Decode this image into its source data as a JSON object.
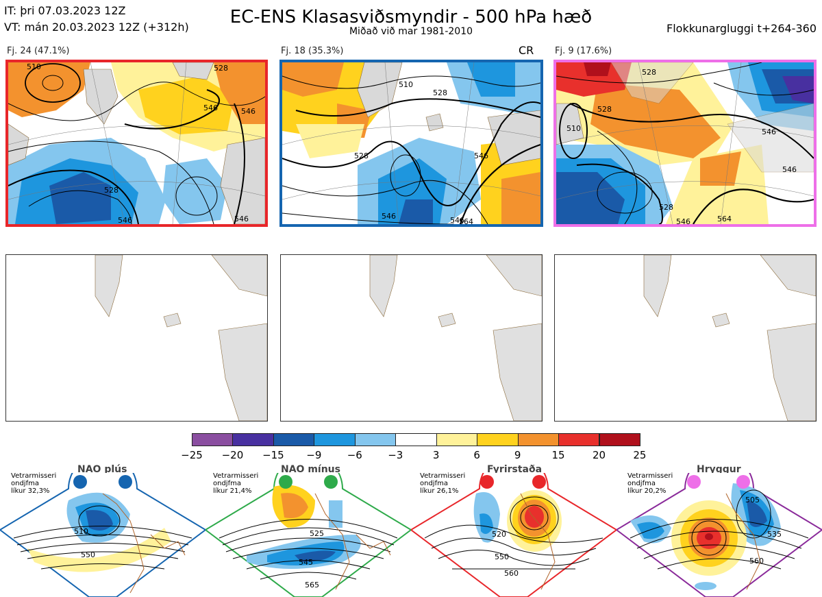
{
  "header": {
    "init_time": "IT: þri 07.03.2023 12Z",
    "valid_time": "VT: mán 20.03.2023 12Z  (+312h)",
    "title": "EC-ENS Klasasviðsmyndir - 500 hPa hæð",
    "subtitle": "Miðað við mar 1981-2010",
    "window": "Flokkunargluggi t+264-360"
  },
  "panels": [
    {
      "label": "Fj. 24 (47.1%)",
      "border_color": "#e8262a",
      "tag": "",
      "contours": [
        "510",
        "528",
        "546",
        "528",
        "546",
        "546",
        "546"
      ]
    },
    {
      "label": "Fj. 18 (35.3%)",
      "border_color": "#1565b0",
      "tag": "CR",
      "contours": [
        "510",
        "528",
        "528",
        "546",
        "546",
        "546",
        "564"
      ]
    },
    {
      "label": "Fj. 9 (17.6%)",
      "border_color": "#ee6fe8",
      "tag": "",
      "contours": [
        "510",
        "528",
        "528",
        "546",
        "528",
        "546",
        "546",
        "564"
      ]
    }
  ],
  "colorbar": {
    "colors": [
      "#8a4ea0",
      "#4830a0",
      "#1a5aa8",
      "#1e96de",
      "#84c6ee",
      "#ffffff",
      "#fff29a",
      "#ffd21e",
      "#f3922e",
      "#e8302c",
      "#b0101c"
    ],
    "ticks": [
      "−25",
      "−20",
      "−15",
      "−9",
      "−6",
      "−3",
      "3",
      "6",
      "9",
      "15",
      "20",
      "25"
    ]
  },
  "regimes": [
    {
      "name": "NAO plús",
      "note": [
        "Vetrarmisseri",
        "ondjfma",
        "líkur 32,3%"
      ],
      "color": "#1565b0",
      "contours": [
        "510",
        "550"
      ]
    },
    {
      "name": "NAO mínus",
      "note": [
        "Vetrarmisseri",
        "ondjfma",
        "líkur 21,4%"
      ],
      "color": "#2eaa4a",
      "contours": [
        "525",
        "545",
        "565"
      ]
    },
    {
      "name": "Fyrirstaða",
      "note": [
        "Vetrarmisseri",
        "ondjfma",
        "líkur 26,1%"
      ],
      "color": "#e8262a",
      "contours": [
        "520",
        "550",
        "560"
      ]
    },
    {
      "name": "Hryggur",
      "note": [
        "Vetrarmisseri",
        "ondjfma",
        "líkur 20,2%"
      ],
      "color": "#ee6fe8",
      "contours": [
        "505",
        "535",
        "560"
      ]
    }
  ]
}
